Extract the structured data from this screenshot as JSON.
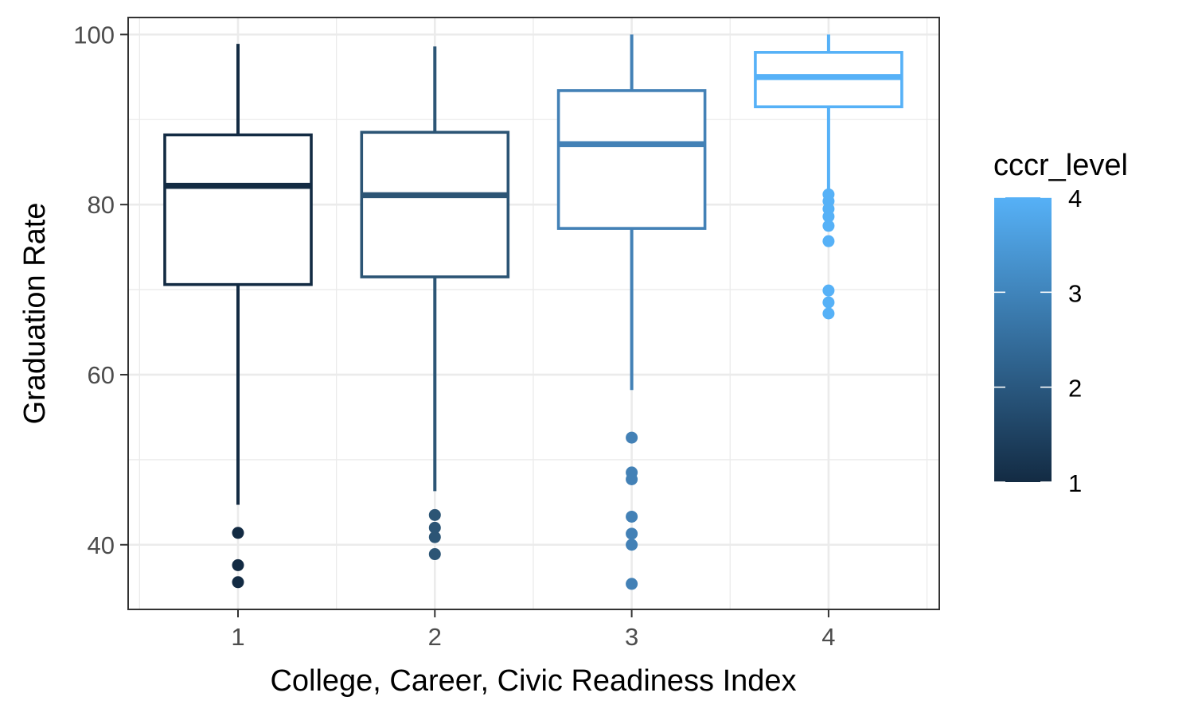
{
  "chart_data": {
    "type": "boxplot",
    "xlabel": "College, Career, Civic Readiness Index",
    "ylabel": "Graduation Rate",
    "categories": [
      "1",
      "2",
      "3",
      "4"
    ],
    "ylim": [
      32.4,
      102
    ],
    "yticks": [
      40,
      60,
      80,
      100
    ],
    "grid": true,
    "boxes": [
      {
        "category": "1",
        "color": "#132b43",
        "whisker_low": 44.7,
        "q1": 70.6,
        "median": 82.2,
        "q3": 88.2,
        "whisker_high": 98.9,
        "outliers": [
          41.4,
          37.6,
          35.6
        ]
      },
      {
        "category": "2",
        "color": "#2c5575",
        "whisker_low": 46.3,
        "q1": 71.5,
        "median": 81.1,
        "q3": 88.5,
        "whisker_high": 98.6,
        "outliers": [
          43.5,
          42.0,
          40.9,
          38.9
        ]
      },
      {
        "category": "3",
        "color": "#4381b6",
        "whisker_low": 58.2,
        "q1": 77.2,
        "median": 87.1,
        "q3": 93.4,
        "whisker_high": 100,
        "outliers": [
          52.6,
          48.5,
          47.7,
          43.3,
          41.3,
          40.0,
          35.4
        ]
      },
      {
        "category": "4",
        "color": "#56b1f7",
        "whisker_low": 81.5,
        "q1": 91.5,
        "median": 95.0,
        "q3": 97.9,
        "whisker_high": 100,
        "outliers": [
          81.2,
          80.4,
          79.5,
          78.6,
          77.5,
          75.7,
          69.9,
          68.5,
          67.2
        ]
      }
    ],
    "legend": {
      "title": "cccr_level",
      "position": "right",
      "type": "colorbar",
      "low_color": "#132b43",
      "high_color": "#56b1f7",
      "range": [
        1,
        4
      ],
      "ticks": [
        "1",
        "2",
        "3",
        "4"
      ]
    }
  }
}
